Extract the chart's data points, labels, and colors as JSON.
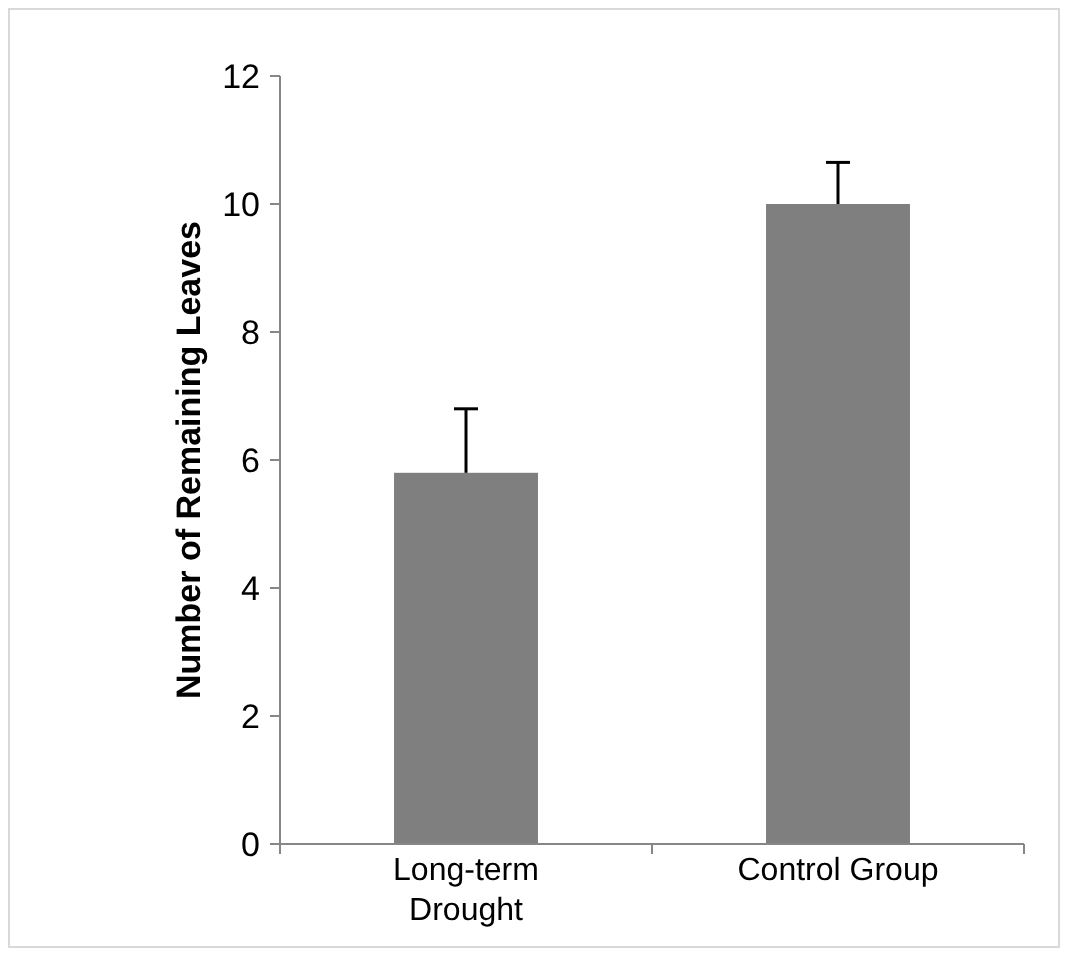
{
  "chart_data": {
    "type": "bar",
    "ylabel": "Number of Remaining Leaves",
    "categories": [
      "Long-term\nDrought",
      "Control Group"
    ],
    "values": [
      5.8,
      10
    ],
    "errors": [
      [
        5.8,
        6.8
      ],
      [
        10,
        10.65
      ]
    ],
    "color": "#7f7f7f",
    "ylim": [
      0,
      12
    ],
    "yticks": [
      0,
      2,
      4,
      6,
      8,
      10,
      12
    ],
    "grid": false
  }
}
